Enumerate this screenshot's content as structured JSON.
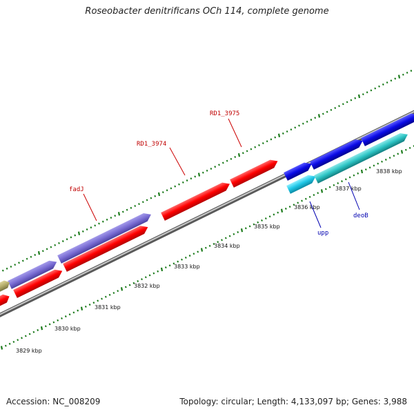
{
  "title": "Roseobacter denitrificans OCh 114, complete genome",
  "footer": {
    "accession": "Accession: NC_008209",
    "summary": "Topology: circular; Length: 4,133,097 bp; Genes: 3,988"
  },
  "colors": {
    "backbone": "#8c8c8c",
    "dots": "#1a7a1a",
    "red_gene": "#ff1a1a",
    "purple_gene": "#7c6fd6",
    "blue_gene": "#1414e6",
    "cyan_gene": "#21c6e0",
    "teal_gene": "#26c4c4",
    "olive_gene": "#b5ad6a",
    "label_red": "#c00000",
    "label_blue": "#0000b0"
  },
  "ticks": [
    "3829 kbp",
    "3830 kbp",
    "3831 kbp",
    "3832 kbp",
    "3833 kbp",
    "3834 kbp",
    "3835 kbp",
    "3836 kbp",
    "3837 kbp",
    "3838 kbp"
  ],
  "labels": {
    "fadJ": "fadJ",
    "rd1_3974": "RD1_3974",
    "rd1_3975": "RD1_3975",
    "upp": "upp",
    "deoB": "deoB"
  }
}
